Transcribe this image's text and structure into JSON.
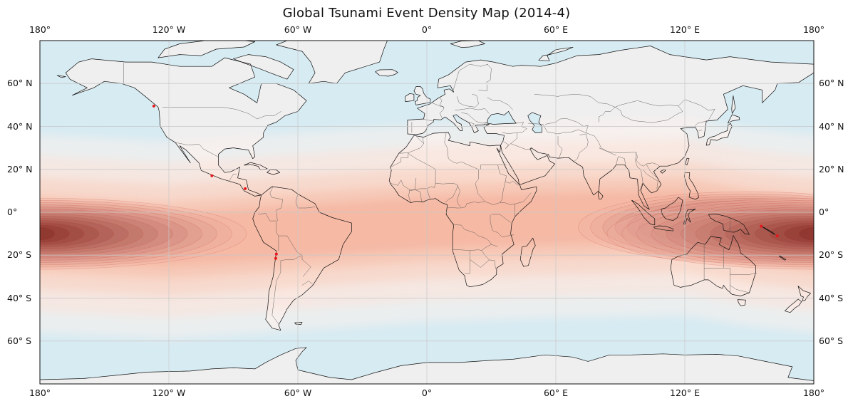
{
  "title": "Global Tsunami Event Density Map (2014-4)",
  "map_data": {
    "projection": "plate-carree",
    "lon_range": [
      -180,
      180
    ],
    "lat_range": [
      -80,
      80
    ],
    "colors": {
      "ocean": "#d7ebf2",
      "land": "#efefef",
      "coast": "#111111",
      "border": "#555555",
      "grid": "#c8c8c8",
      "density_low": "#fdeee8",
      "density_high": "#8b1a1a",
      "event": "#e8161b"
    },
    "lon_ticks": [
      {
        "value": -180,
        "label": "180°"
      },
      {
        "value": -120,
        "label": "120° W"
      },
      {
        "value": -60,
        "label": "60° W"
      },
      {
        "value": 0,
        "label": "0°"
      },
      {
        "value": 60,
        "label": "60° E"
      },
      {
        "value": 120,
        "label": "120° E"
      },
      {
        "value": 180,
        "label": "180°"
      }
    ],
    "lat_ticks": [
      {
        "value": 60,
        "label": "60° N"
      },
      {
        "value": 40,
        "label": "40° N"
      },
      {
        "value": 20,
        "label": "20° N"
      },
      {
        "value": 0,
        "label": "0°"
      },
      {
        "value": -20,
        "label": "20° S"
      },
      {
        "value": -40,
        "label": "40° S"
      },
      {
        "value": -60,
        "label": "60° S"
      }
    ],
    "events": [
      {
        "lon": -127,
        "lat": 49.5
      },
      {
        "lon": -100,
        "lat": 17
      },
      {
        "lon": -84.5,
        "lat": 11
      },
      {
        "lon": -70,
        "lat": -19.5
      },
      {
        "lon": -70.3,
        "lat": -21.5
      },
      {
        "lon": 155.5,
        "lat": -6.5
      },
      {
        "lon": 163,
        "lat": -11
      }
    ],
    "density_band": {
      "center_lat_by_lon": [
        [
          -180,
          -10
        ],
        [
          -120,
          -13
        ],
        [
          -60,
          -9
        ],
        [
          0,
          -5
        ],
        [
          60,
          -3
        ],
        [
          120,
          -2
        ],
        [
          150,
          -7
        ],
        [
          180,
          -10
        ]
      ],
      "hotspots": [
        {
          "lon": -180,
          "lat": -10,
          "strength": 1.0
        },
        {
          "lon": 150,
          "lat": -7,
          "strength": 0.95
        }
      ]
    }
  }
}
